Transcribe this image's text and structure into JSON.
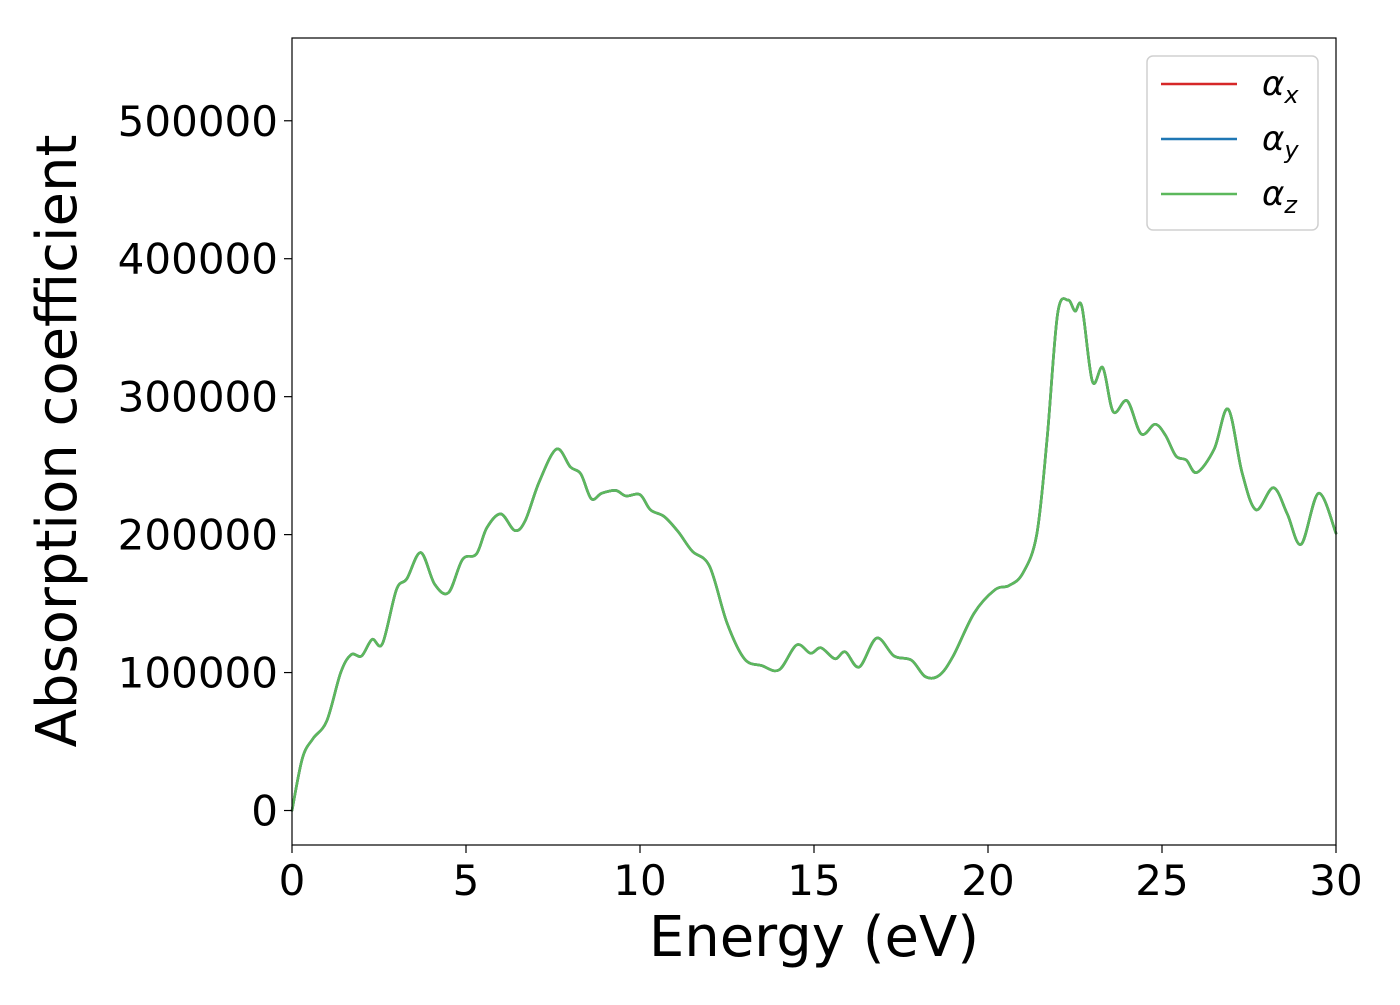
{
  "chart_data": {
    "type": "line",
    "title": "",
    "xlabel": "Energy (eV)",
    "ylabel": "Absorption coefficient",
    "xlim": [
      0,
      30
    ],
    "ylim": [
      -25000,
      560000
    ],
    "xticks": [
      0,
      5,
      10,
      15,
      20,
      25,
      30
    ],
    "yticks": [
      0,
      100000,
      200000,
      300000,
      400000,
      500000
    ],
    "xtick_labels": [
      "0",
      "5",
      "10",
      "15",
      "20",
      "25",
      "30"
    ],
    "ytick_labels": [
      "0",
      "100000",
      "200000",
      "300000",
      "400000",
      "500000"
    ],
    "grid": false,
    "legend_position": "top-right",
    "x": [
      0,
      0.3,
      0.6,
      1.0,
      1.4,
      1.7,
      2.0,
      2.3,
      2.6,
      3.0,
      3.3,
      3.7,
      4.1,
      4.5,
      4.9,
      5.3,
      5.6,
      6.0,
      6.4,
      6.7,
      7.1,
      7.6,
      8.0,
      8.3,
      8.6,
      8.9,
      9.3,
      9.6,
      10.0,
      10.3,
      10.7,
      11.1,
      11.5,
      12.0,
      12.5,
      13.0,
      13.5,
      14.0,
      14.5,
      14.9,
      15.2,
      15.6,
      15.9,
      16.3,
      16.8,
      17.3,
      17.8,
      18.2,
      18.6,
      19.0,
      19.6,
      20.2,
      20.6,
      21.0,
      21.4,
      21.7,
      22.0,
      22.3,
      22.5,
      22.7,
      23.0,
      23.3,
      23.6,
      24.0,
      24.4,
      24.8,
      25.1,
      25.4,
      25.7,
      26.0,
      26.5,
      26.9,
      27.3,
      27.7,
      28.2,
      28.6,
      29.0,
      29.5,
      30.0
    ],
    "series": [
      {
        "name": "α",
        "sub": "x",
        "color": "#d62728",
        "values": [
          0,
          38000,
          52000,
          65000,
          100000,
          113000,
          112000,
          124000,
          121000,
          160000,
          168000,
          187000,
          164000,
          158000,
          182000,
          186000,
          205000,
          215000,
          203000,
          210000,
          238000,
          262000,
          249000,
          244000,
          226000,
          230000,
          232000,
          228000,
          229000,
          218000,
          213000,
          202000,
          188000,
          177000,
          136000,
          110000,
          105000,
          102000,
          120000,
          114000,
          118000,
          110000,
          115000,
          104000,
          125000,
          112000,
          109000,
          97000,
          98000,
          112000,
          143000,
          160000,
          163000,
          172000,
          200000,
          270000,
          360000,
          370000,
          362000,
          365000,
          311000,
          321000,
          289000,
          297000,
          273000,
          280000,
          272000,
          257000,
          254000,
          245000,
          262000,
          291000,
          245000,
          218000,
          234000,
          215000,
          193000,
          230000,
          201000
        ]
      },
      {
        "name": "α",
        "sub": "y",
        "color": "#1f77b4",
        "values": [
          0,
          38000,
          52000,
          65000,
          100000,
          113000,
          112000,
          124000,
          121000,
          160000,
          168000,
          187000,
          164000,
          158000,
          182000,
          186000,
          205000,
          215000,
          203000,
          210000,
          238000,
          262000,
          249000,
          244000,
          226000,
          230000,
          232000,
          228000,
          229000,
          218000,
          213000,
          202000,
          188000,
          177000,
          136000,
          110000,
          105000,
          102000,
          120000,
          114000,
          118000,
          110000,
          115000,
          104000,
          125000,
          112000,
          109000,
          97000,
          98000,
          112000,
          143000,
          160000,
          163000,
          172000,
          200000,
          270000,
          360000,
          370000,
          362000,
          365000,
          311000,
          321000,
          289000,
          297000,
          273000,
          280000,
          272000,
          257000,
          254000,
          245000,
          262000,
          291000,
          245000,
          218000,
          234000,
          215000,
          193000,
          230000,
          201000
        ]
      },
      {
        "name": "α",
        "sub": "z",
        "color": "#5cb85c",
        "values": [
          0,
          38000,
          52000,
          65000,
          100000,
          113000,
          112000,
          124000,
          121000,
          160000,
          168000,
          187000,
          164000,
          158000,
          182000,
          186000,
          205000,
          215000,
          203000,
          210000,
          238000,
          262000,
          249000,
          244000,
          226000,
          230000,
          232000,
          228000,
          229000,
          218000,
          213000,
          202000,
          188000,
          177000,
          136000,
          110000,
          105000,
          102000,
          120000,
          114000,
          118000,
          110000,
          115000,
          104000,
          125000,
          112000,
          109000,
          97000,
          98000,
          112000,
          143000,
          160000,
          163000,
          172000,
          200000,
          270000,
          360000,
          370000,
          362000,
          365000,
          311000,
          321000,
          289000,
          297000,
          273000,
          280000,
          272000,
          257000,
          254000,
          245000,
          262000,
          291000,
          245000,
          218000,
          234000,
          215000,
          193000,
          230000,
          201000
        ]
      }
    ]
  }
}
